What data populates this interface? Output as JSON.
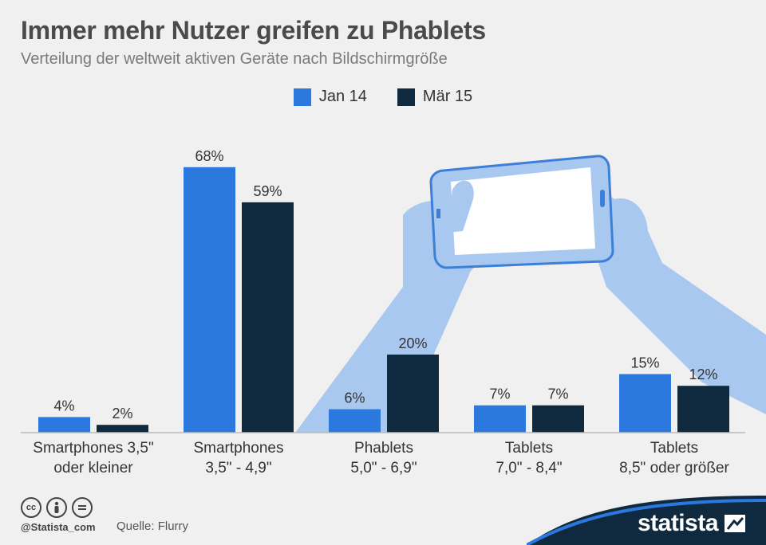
{
  "header": {
    "title": "Immer mehr Nutzer greifen zu Phablets",
    "subtitle": "Verteilung der weltweit aktiven Geräte nach Bildschirmgröße"
  },
  "colors": {
    "series_jan14": "#2b78de",
    "series_mar15": "#0f2a3f",
    "illustration": "#a9c8f0",
    "brand_bar": "#0f2a3f"
  },
  "chart_data": {
    "type": "bar",
    "categories": [
      [
        "Smartphones 3,5\"",
        "oder kleiner"
      ],
      [
        "Smartphones",
        "3,5\" - 4,9\""
      ],
      [
        "Phablets",
        "5,0\" - 6,9\""
      ],
      [
        "Tablets",
        "7,0\" - 8,4\""
      ],
      [
        "Tablets",
        "8,5\" oder größer"
      ]
    ],
    "series": [
      {
        "name": "Jan 14",
        "values": [
          4,
          68,
          6,
          7,
          15
        ]
      },
      {
        "name": "Mär 15",
        "values": [
          2,
          59,
          20,
          7,
          12
        ]
      }
    ],
    "value_labels": [
      [
        "4%",
        "68%",
        "6%",
        "7%",
        "15%"
      ],
      [
        "2%",
        "59%",
        "20%",
        "7%",
        "12%"
      ]
    ],
    "ylim": [
      0,
      70
    ],
    "grid": false,
    "legend_position": "top-center"
  },
  "footer": {
    "handle": "@Statista_com",
    "source": "Quelle: Flurry",
    "brand": "statista",
    "license_icons": [
      "cc-icon",
      "by-icon",
      "nd-icon"
    ]
  }
}
